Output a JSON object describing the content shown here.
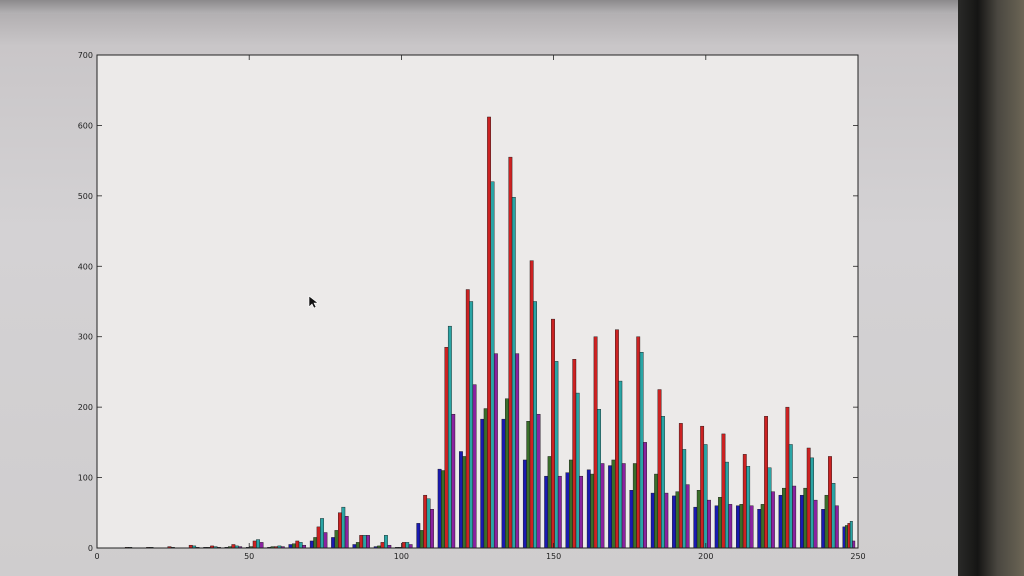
{
  "window": {
    "title": "",
    "status": ""
  },
  "colors": {
    "frame": "#222222",
    "plot_bg": "#eceae9",
    "tick_text": "#222222",
    "series": [
      "#1a1ab0",
      "#3a6e2a",
      "#cc2222",
      "#2aa5a5",
      "#8a22a0"
    ]
  },
  "chart_data": {
    "type": "bar",
    "title": "",
    "xlabel": "",
    "ylabel": "",
    "xlim": [
      0,
      250
    ],
    "ylim": [
      0,
      700
    ],
    "xticks": [
      "0",
      "50",
      "100",
      "150",
      "200",
      "250"
    ],
    "yticks": [
      "0",
      "100",
      "200",
      "300",
      "400",
      "500",
      "600",
      "700"
    ],
    "grid": false,
    "legend": "none",
    "bin_edges": [
      0,
      7,
      14,
      21,
      28,
      35,
      42,
      49,
      56,
      63,
      70,
      77,
      84,
      91,
      98,
      105,
      112,
      119,
      126,
      133,
      140,
      147,
      154,
      161,
      168,
      175,
      182,
      189,
      196,
      203,
      210,
      217,
      224,
      231,
      238,
      245
    ],
    "series": [
      {
        "values": [
          0,
          0,
          0,
          0,
          0,
          1,
          1,
          1,
          1,
          5,
          10,
          15,
          5,
          2,
          1,
          35,
          112,
          137,
          183,
          183,
          125,
          102,
          107,
          111,
          117,
          82,
          78,
          74,
          58,
          60,
          60,
          55,
          75,
          75,
          55,
          30
        ]
      },
      {
        "values": [
          0,
          0,
          0,
          0,
          0,
          1,
          2,
          2,
          2,
          6,
          15,
          25,
          8,
          3,
          1,
          25,
          110,
          130,
          198,
          212,
          180,
          130,
          125,
          105,
          125,
          120,
          105,
          80,
          82,
          72,
          62,
          62,
          85,
          85,
          75,
          32
        ]
      },
      {
        "values": [
          0,
          1,
          1,
          2,
          4,
          3,
          5,
          10,
          2,
          10,
          30,
          50,
          18,
          8,
          8,
          75,
          285,
          367,
          612,
          555,
          408,
          325,
          268,
          300,
          310,
          300,
          225,
          177,
          173,
          162,
          133,
          187,
          200,
          142,
          130,
          35
        ]
      },
      {
        "values": [
          0,
          1,
          1,
          1,
          3,
          2,
          3,
          12,
          3,
          8,
          42,
          58,
          18,
          18,
          8,
          70,
          315,
          350,
          520,
          498,
          350,
          265,
          220,
          197,
          237,
          278,
          187,
          140,
          147,
          122,
          116,
          114,
          147,
          128,
          92,
          38
        ]
      },
      {
        "values": [
          0,
          0,
          0,
          0,
          1,
          1,
          2,
          8,
          2,
          4,
          22,
          45,
          18,
          4,
          5,
          55,
          190,
          232,
          276,
          276,
          190,
          102,
          102,
          120,
          120,
          150,
          78,
          90,
          68,
          62,
          60,
          80,
          88,
          68,
          60,
          10
        ]
      }
    ]
  }
}
